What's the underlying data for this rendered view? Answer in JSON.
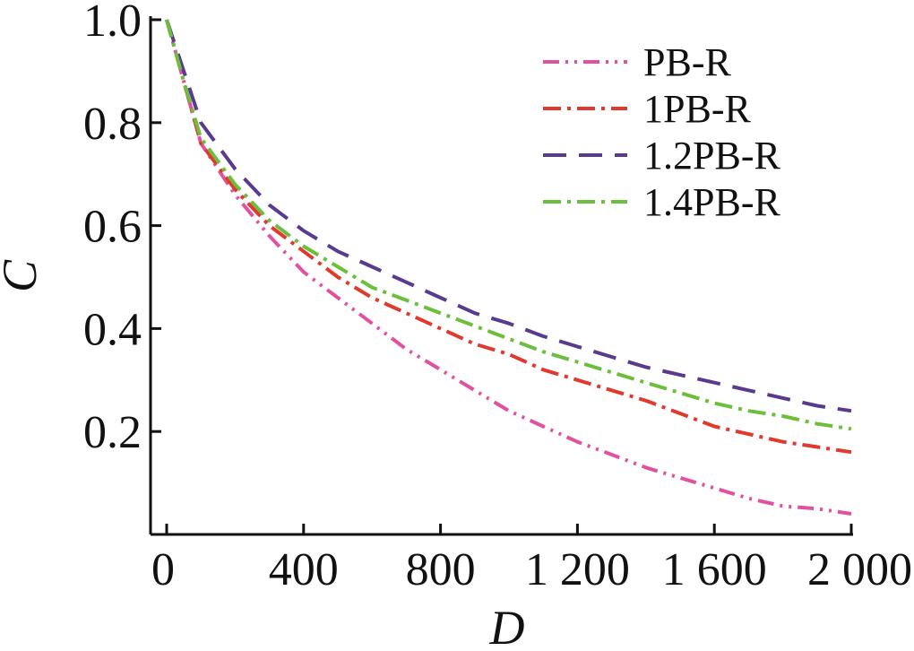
{
  "chart_data": {
    "type": "line",
    "xlabel": "D",
    "ylabel": "C",
    "xlim": [
      0,
      2000
    ],
    "ylim": [
      0,
      1.0
    ],
    "xticks": [
      0,
      400,
      800,
      1200,
      1600,
      2000
    ],
    "xtick_labels": [
      "0",
      "400",
      "800",
      "1 200",
      "1 600",
      "2 000"
    ],
    "yticks": [
      0.2,
      0.4,
      0.6,
      0.8,
      1.0
    ],
    "ytick_labels": [
      "0.2",
      "0.4",
      "0.6",
      "0.8",
      "1.0"
    ],
    "grid": false,
    "legend_position": "top-right",
    "series": [
      {
        "name": "PB-R",
        "color": "#e0529f",
        "dash": "dash-dot-dot",
        "x": [
          0,
          50,
          100,
          200,
          300,
          400,
          500,
          600,
          700,
          800,
          900,
          1000,
          1100,
          1200,
          1300,
          1400,
          1500,
          1600,
          1700,
          1800,
          1900,
          2000
        ],
        "y": [
          1.0,
          0.88,
          0.76,
          0.66,
          0.58,
          0.51,
          0.46,
          0.41,
          0.36,
          0.32,
          0.28,
          0.24,
          0.21,
          0.18,
          0.155,
          0.13,
          0.11,
          0.09,
          0.07,
          0.055,
          0.05,
          0.04
        ]
      },
      {
        "name": "1PB-R",
        "color": "#e03a2e",
        "dash": "dash-dot",
        "x": [
          0,
          50,
          100,
          200,
          300,
          400,
          500,
          600,
          700,
          800,
          900,
          1000,
          1100,
          1200,
          1300,
          1400,
          1500,
          1600,
          1700,
          1800,
          1900,
          2000
        ],
        "y": [
          1.0,
          0.88,
          0.76,
          0.67,
          0.6,
          0.55,
          0.5,
          0.46,
          0.43,
          0.4,
          0.37,
          0.35,
          0.32,
          0.3,
          0.28,
          0.26,
          0.235,
          0.21,
          0.195,
          0.18,
          0.17,
          0.16
        ]
      },
      {
        "name": "1.2PB-R",
        "color": "#5a3a8e",
        "dash": "long-dash",
        "x": [
          0,
          50,
          100,
          200,
          300,
          400,
          500,
          600,
          700,
          800,
          900,
          1000,
          1100,
          1200,
          1300,
          1400,
          1500,
          1600,
          1700,
          1800,
          1900,
          2000
        ],
        "y": [
          1.0,
          0.9,
          0.8,
          0.71,
          0.64,
          0.59,
          0.55,
          0.52,
          0.49,
          0.46,
          0.43,
          0.41,
          0.385,
          0.365,
          0.345,
          0.325,
          0.31,
          0.295,
          0.28,
          0.265,
          0.25,
          0.24
        ]
      },
      {
        "name": "1.4PB-R",
        "color": "#6cbf3c",
        "dash": "dash-dot",
        "x": [
          0,
          50,
          100,
          200,
          300,
          400,
          500,
          600,
          700,
          800,
          900,
          1000,
          1100,
          1200,
          1300,
          1400,
          1500,
          1600,
          1700,
          1800,
          1900,
          2000
        ],
        "y": [
          1.0,
          0.88,
          0.77,
          0.68,
          0.61,
          0.56,
          0.52,
          0.48,
          0.455,
          0.43,
          0.405,
          0.38,
          0.355,
          0.335,
          0.315,
          0.295,
          0.275,
          0.255,
          0.24,
          0.23,
          0.215,
          0.205
        ]
      }
    ]
  }
}
